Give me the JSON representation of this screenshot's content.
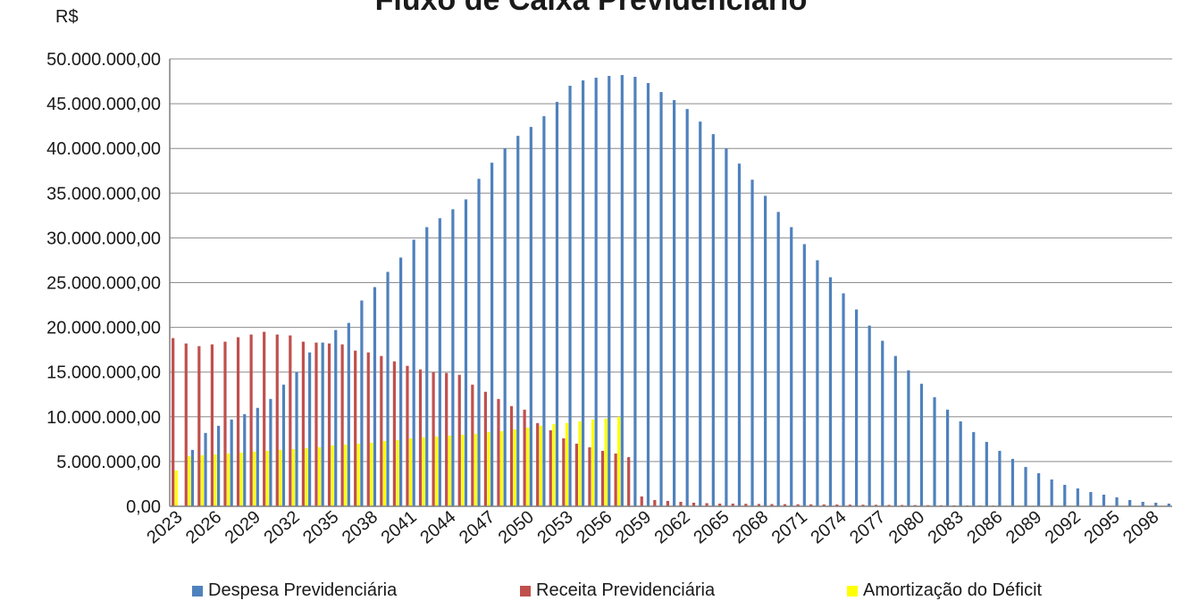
{
  "chart_data": {
    "type": "bar",
    "title": "Fluxo de Caixa Previdenciário",
    "ylabel": "R$",
    "ylim": [
      0,
      50000000
    ],
    "yticks": [
      0,
      5000000,
      10000000,
      15000000,
      20000000,
      25000000,
      30000000,
      35000000,
      40000000,
      45000000,
      50000000
    ],
    "ytick_labels": [
      "0,00",
      "5.000.000,00",
      "10.000.000,00",
      "15.000.000,00",
      "20.000.000,00",
      "25.000.000,00",
      "30.000.000,00",
      "35.000.000,00",
      "40.000.000,00",
      "45.000.000,00",
      "50.000.000,00"
    ],
    "first_year": 2023,
    "last_year": 2099,
    "xtick_labels": [
      "2023",
      "2026",
      "2029",
      "2032",
      "2035",
      "2038",
      "2041",
      "2044",
      "2047",
      "2050",
      "2053",
      "2056",
      "2059",
      "2062",
      "2065",
      "2068",
      "2071",
      "2074",
      "2077",
      "2080",
      "2083",
      "2086",
      "2089",
      "2092",
      "2095",
      "2098"
    ],
    "grid": true,
    "legend_position": "bottom",
    "series": [
      {
        "name": "Despesa Previdenciária",
        "color": "#4f81bd",
        "values": [
          0,
          6300000,
          8200000,
          9000000,
          9700000,
          10300000,
          11000000,
          12000000,
          13600000,
          15000000,
          17200000,
          18300000,
          19700000,
          20500000,
          23000000,
          24500000,
          26200000,
          27800000,
          29800000,
          31200000,
          32200000,
          33200000,
          34300000,
          36600000,
          38400000,
          40000000,
          41400000,
          42400000,
          43600000,
          45200000,
          47000000,
          47600000,
          47900000,
          48100000,
          48200000,
          48000000,
          47300000,
          46300000,
          45400000,
          44400000,
          43000000,
          41600000,
          40000000,
          38300000,
          36500000,
          34700000,
          32900000,
          31200000,
          29300000,
          27500000,
          25600000,
          23800000,
          22000000,
          20200000,
          18500000,
          16800000,
          15200000,
          13700000,
          12200000,
          10800000,
          9500000,
          8300000,
          7200000,
          6200000,
          5300000,
          4400000,
          3700000,
          3000000,
          2400000,
          2000000,
          1600000,
          1300000,
          1000000,
          700000,
          500000,
          400000,
          300000
        ]
      },
      {
        "name": "Receita Previdenciária",
        "color": "#c0504d",
        "values": [
          18800000,
          18200000,
          17900000,
          18100000,
          18400000,
          18900000,
          19200000,
          19500000,
          19200000,
          19100000,
          18400000,
          18300000,
          18200000,
          18100000,
          17400000,
          17200000,
          16800000,
          16200000,
          15700000,
          15300000,
          15000000,
          14900000,
          14700000,
          13600000,
          12800000,
          12000000,
          11200000,
          10800000,
          9300000,
          8500000,
          7600000,
          7000000,
          6600000,
          6200000,
          5900000,
          5500000,
          1100000,
          700000,
          600000,
          500000,
          400000,
          350000,
          300000,
          300000,
          280000,
          260000,
          250000,
          240000,
          230000,
          220000,
          210000,
          200000,
          190000,
          180000,
          170000,
          160000,
          150000,
          140000,
          130000,
          120000,
          110000,
          100000,
          90000,
          80000,
          70000,
          60000,
          50000,
          45000,
          40000,
          35000,
          30000,
          25000,
          20000,
          15000,
          10000,
          8000,
          5000
        ]
      },
      {
        "name": "Amortização do Déficit",
        "color": "#ffff00",
        "values": [
          4000000,
          5600000,
          5700000,
          5800000,
          5900000,
          6000000,
          6100000,
          6200000,
          6300000,
          6400000,
          6500000,
          6600000,
          6800000,
          6900000,
          7000000,
          7100000,
          7300000,
          7400000,
          7600000,
          7700000,
          7800000,
          7900000,
          8000000,
          8100000,
          8300000,
          8400000,
          8600000,
          8800000,
          9000000,
          9200000,
          9300000,
          9500000,
          9700000,
          9800000,
          10000000,
          0,
          0,
          0,
          0,
          0,
          0,
          0,
          0,
          0,
          0,
          0,
          0,
          0,
          0,
          0,
          0,
          0,
          0,
          0,
          0,
          0,
          0,
          0,
          0,
          0,
          0,
          0,
          0,
          0,
          0,
          0,
          0,
          0,
          0,
          0,
          0,
          0,
          0,
          0,
          0,
          0,
          0
        ]
      }
    ]
  }
}
